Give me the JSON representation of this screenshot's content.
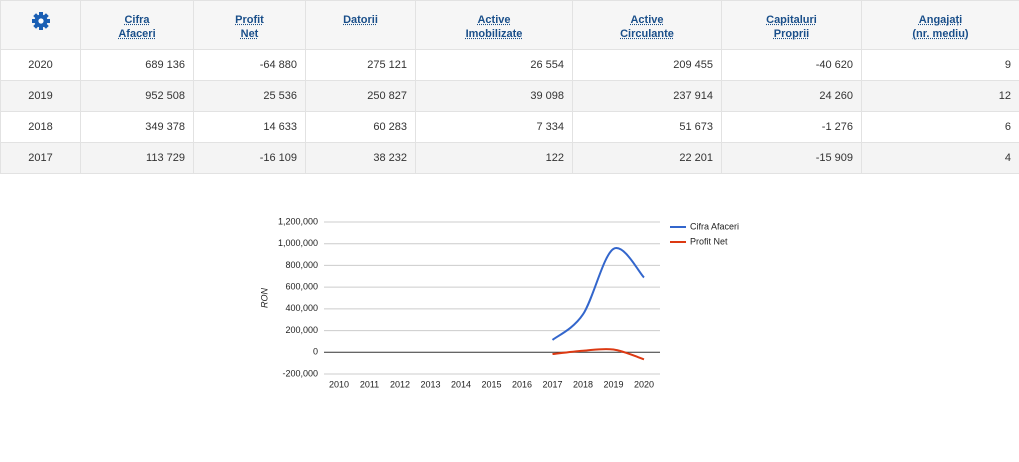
{
  "table": {
    "headers": [
      [
        "Cifra",
        "Afaceri"
      ],
      [
        "Profit",
        "Net"
      ],
      [
        "Datorii"
      ],
      [
        "Active",
        "Imobilizate"
      ],
      [
        "Active",
        "Circulante"
      ],
      [
        "Capitaluri",
        "Proprii"
      ],
      [
        "Angajați",
        "(nr. mediu)"
      ]
    ],
    "rows": [
      [
        "2020",
        "689 136",
        "-64 880",
        "275 121",
        "26 554",
        "209 455",
        "-40 620",
        "9"
      ],
      [
        "2019",
        "952 508",
        "25 536",
        "250 827",
        "39 098",
        "237 914",
        "24 260",
        "12"
      ],
      [
        "2018",
        "349 378",
        "14 633",
        "60 283",
        "7 334",
        "51 673",
        "-1 276",
        "6"
      ],
      [
        "2017",
        "113 729",
        "-16 109",
        "38 232",
        "122",
        "22 201",
        "-15 909",
        "4"
      ]
    ]
  },
  "chart_data": {
    "type": "line",
    "ylabel": "RON",
    "categories": [
      "2010",
      "2011",
      "2012",
      "2013",
      "2014",
      "2015",
      "2016",
      "2017",
      "2018",
      "2019",
      "2020"
    ],
    "series": [
      {
        "name": "Cifra Afaceri",
        "color": "#3366cc",
        "values": [
          null,
          null,
          null,
          null,
          null,
          null,
          null,
          113729,
          349378,
          952508,
          689136
        ]
      },
      {
        "name": "Profit Net",
        "color": "#dc3912",
        "values": [
          null,
          null,
          null,
          null,
          null,
          null,
          null,
          -16109,
          14633,
          25536,
          -64880
        ]
      }
    ],
    "ylim": [
      -200000,
      1200000
    ],
    "yticks": [
      {
        "value": -200000,
        "label": "-200,000"
      },
      0,
      {
        "value": 200000,
        "label": "200,000"
      },
      {
        "value": 400000,
        "label": "400,000"
      },
      {
        "value": 600000,
        "label": "600,000"
      },
      {
        "value": 800000,
        "label": "800,000"
      },
      {
        "value": 1000000,
        "label": "1,000,000"
      },
      {
        "value": 1200000,
        "label": "1,200,000"
      }
    ],
    "grid": true,
    "legend": "right"
  }
}
